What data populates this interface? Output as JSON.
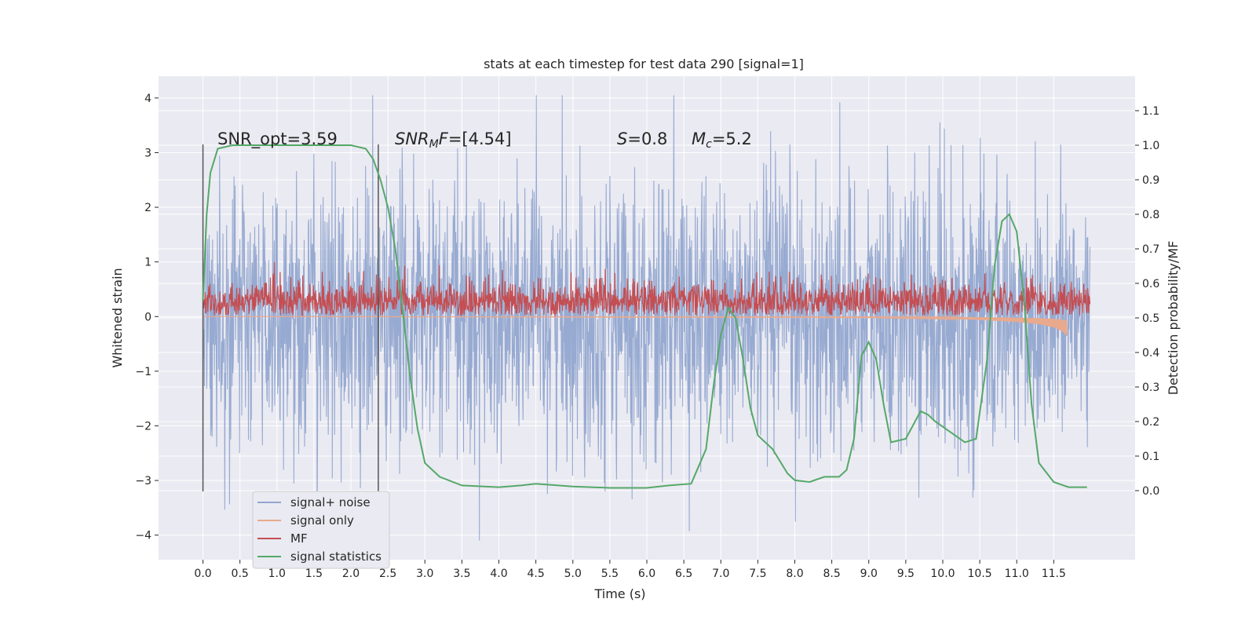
{
  "chart_data": {
    "type": "line",
    "title": "stats at each timestep for test data 290 [signal=1]",
    "xlabel": "Time (s)",
    "ylabel_left": "Whitened strain",
    "ylabel_right": "Detection probability/MF",
    "xlim": [
      -0.6,
      12.6
    ],
    "ylim_left": [
      -4.45,
      4.4
    ],
    "ylim_right": [
      -0.2,
      1.2
    ],
    "x_ticks": [
      "0.0",
      "0.5",
      "1.0",
      "1.5",
      "2.0",
      "2.5",
      "3.0",
      "3.5",
      "4.0",
      "4.5",
      "5.0",
      "5.5",
      "6.0",
      "6.5",
      "7.0",
      "7.5",
      "8.0",
      "8.5",
      "9.0",
      "9.5",
      "10.0",
      "10.5",
      "11.0",
      "11.5"
    ],
    "y_left_ticks": [
      "−4",
      "−3",
      "−2",
      "−1",
      "0",
      "1",
      "2",
      "3",
      "4"
    ],
    "y_right_ticks": [
      "0.0",
      "0.1",
      "0.2",
      "0.3",
      "0.4",
      "0.5",
      "0.6",
      "0.7",
      "0.8",
      "0.9",
      "1.0",
      "1.1"
    ],
    "grid": true,
    "legend_position": "lower-left",
    "annotations": {
      "snr_opt": "SNR_opt=3.59",
      "snr_mf_italic": "SNR",
      "snr_mf_sub": "M",
      "snr_mf_italic2": "F",
      "snr_mf_value": "=[4.54]",
      "s_symbol": "S",
      "s_value": "=0.8",
      "mc_symbol": "M",
      "mc_sub": "c",
      "mc_value": "=5.2"
    },
    "vertical_markers": [
      0.0,
      2.37
    ],
    "series": [
      {
        "name": "signal+ noise",
        "color": "#92a6cf",
        "axis": "left",
        "noise_range": [
          -4.1,
          4.05
        ],
        "t_range": [
          0.0,
          11.99
        ]
      },
      {
        "name": "signal only",
        "color": "#e8a98d",
        "axis": "left",
        "t_range": [
          0.0,
          11.68
        ],
        "x": [
          0.0,
          9.0,
          10.0,
          10.5,
          11.0,
          11.3,
          11.5,
          11.6,
          11.68
        ],
        "y": [
          0.0,
          -0.02,
          -0.04,
          -0.06,
          -0.1,
          -0.14,
          -0.2,
          -0.26,
          -0.35
        ]
      },
      {
        "name": "MF",
        "color": "#c44e52",
        "axis": "left",
        "t_range": [
          0.0,
          11.99
        ],
        "typical_range": [
          0.0,
          0.75
        ]
      },
      {
        "name": "signal statistics",
        "color": "#55a868",
        "axis": "right",
        "x": [
          0.0,
          0.05,
          0.1,
          0.2,
          0.4,
          0.6,
          1.0,
          1.5,
          2.0,
          2.2,
          2.3,
          2.4,
          2.5,
          2.6,
          2.7,
          2.8,
          2.9,
          3.0,
          3.2,
          3.5,
          4.0,
          4.3,
          4.5,
          5.0,
          5.5,
          6.0,
          6.3,
          6.6,
          6.8,
          6.9,
          7.0,
          7.1,
          7.2,
          7.3,
          7.4,
          7.5,
          7.7,
          7.9,
          8.0,
          8.2,
          8.4,
          8.6,
          8.7,
          8.8,
          8.9,
          9.0,
          9.1,
          9.2,
          9.3,
          9.5,
          9.6,
          9.7,
          9.8,
          9.9,
          10.1,
          10.3,
          10.45,
          10.6,
          10.7,
          10.8,
          10.9,
          11.0,
          11.1,
          11.2,
          11.3,
          11.5,
          11.7,
          11.95
        ],
        "y": [
          0.55,
          0.8,
          0.92,
          0.99,
          1.0,
          1.0,
          1.0,
          1.0,
          1.0,
          0.99,
          0.96,
          0.9,
          0.82,
          0.7,
          0.52,
          0.33,
          0.18,
          0.08,
          0.04,
          0.015,
          0.01,
          0.015,
          0.02,
          0.012,
          0.008,
          0.008,
          0.015,
          0.02,
          0.12,
          0.3,
          0.45,
          0.53,
          0.5,
          0.38,
          0.24,
          0.16,
          0.12,
          0.05,
          0.03,
          0.025,
          0.04,
          0.04,
          0.06,
          0.15,
          0.39,
          0.43,
          0.38,
          0.25,
          0.14,
          0.15,
          0.19,
          0.23,
          0.22,
          0.2,
          0.17,
          0.14,
          0.15,
          0.38,
          0.65,
          0.78,
          0.8,
          0.75,
          0.55,
          0.25,
          0.08,
          0.025,
          0.01,
          0.01
        ]
      }
    ]
  }
}
